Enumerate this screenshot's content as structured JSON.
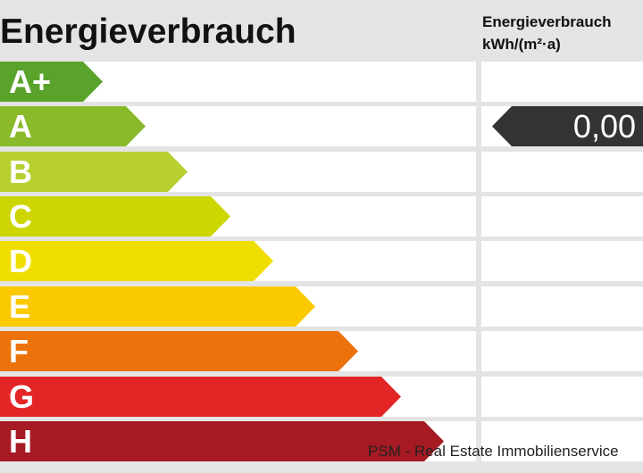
{
  "title": "Energieverbrauch",
  "unit_header": {
    "line1": "Energieverbrauch",
    "line2": "kWh/(m²·a)"
  },
  "classes": [
    {
      "label": "A+",
      "color": "#5aa32b"
    },
    {
      "label": "A",
      "color": "#8aba2a"
    },
    {
      "label": "B",
      "color": "#b8cf2f"
    },
    {
      "label": "C",
      "color": "#cdd600"
    },
    {
      "label": "D",
      "color": "#f0de00"
    },
    {
      "label": "E",
      "color": "#fbc900"
    },
    {
      "label": "F",
      "color": "#ec730c"
    },
    {
      "label": "G",
      "color": "#e32525"
    },
    {
      "label": "H",
      "color": "#a61a23"
    }
  ],
  "indicator": {
    "value": "0,00",
    "class": "A",
    "color": "#333333"
  },
  "credit": "PSM - Real Estate Immobilienservice"
}
